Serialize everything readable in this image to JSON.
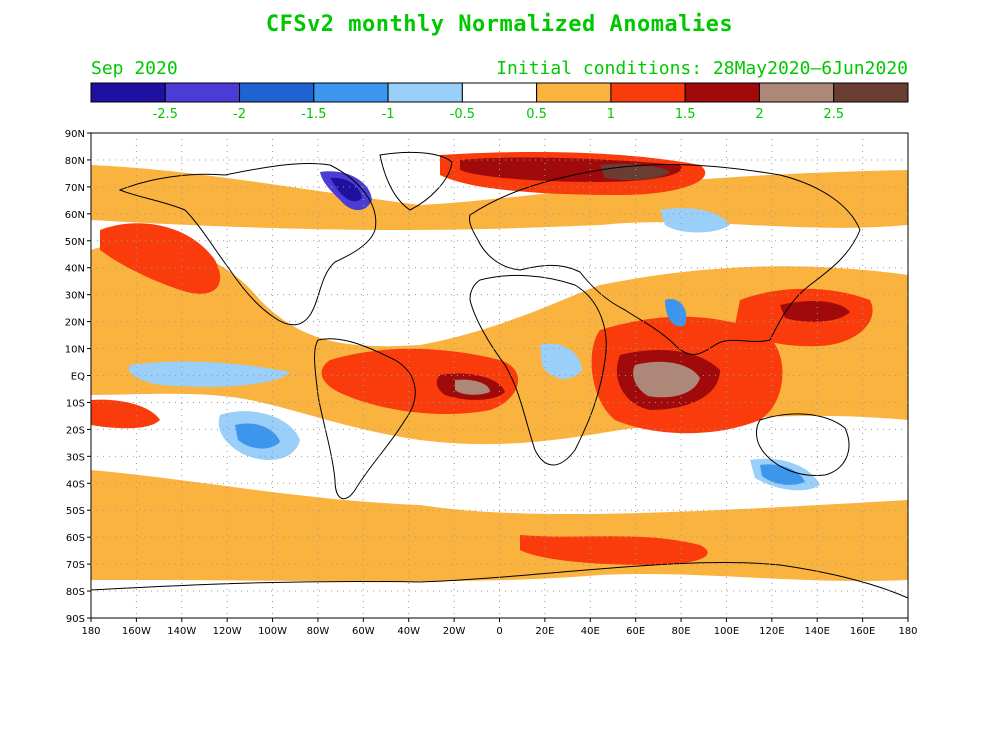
{
  "title": "CFSv2 monthly Normalized Anomalies",
  "valid_month": "Sep 2020",
  "initial_conditions": "Initial conditions: 28May2020–6Jun2020",
  "colorbar": {
    "colors": [
      "#2010a0",
      "#4a3cd4",
      "#1f63d2",
      "#3c96ee",
      "#99cff8",
      "#ffffff",
      "#fbb33f",
      "#fa3c0c",
      "#a00a0a",
      "#ad8878",
      "#6a3d33"
    ],
    "labels": [
      "-2.5",
      "-2",
      "-1.5",
      "-1",
      "-0.5",
      "0.5",
      "1",
      "1.5",
      "2",
      "2.5"
    ]
  },
  "map": {
    "lat_labels": [
      "90N",
      "80N",
      "70N",
      "60N",
      "50N",
      "40N",
      "30N",
      "20N",
      "10N",
      "EQ",
      "10S",
      "20S",
      "30S",
      "40S",
      "50S",
      "60S",
      "70S",
      "80S",
      "90S"
    ],
    "lon_labels": [
      "180",
      "160W",
      "140W",
      "120W",
      "100W",
      "80W",
      "60W",
      "40W",
      "20W",
      "0",
      "20E",
      "40E",
      "60E",
      "80E",
      "100E",
      "120E",
      "140E",
      "160E",
      "180"
    ]
  }
}
